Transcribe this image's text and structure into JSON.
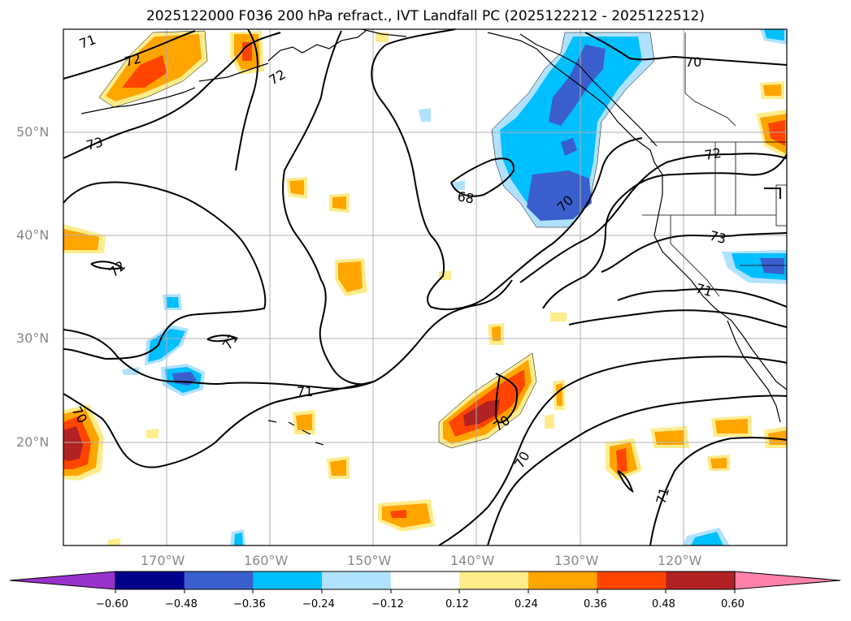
{
  "title": "2025122000 F036 200 hPa refract., IVT Landfall PC (2025122212 - 2025122512)",
  "map": {
    "longitude_labels": [
      "170°W",
      "160°W",
      "150°W",
      "140°W",
      "130°W",
      "120°W"
    ],
    "latitude_labels": [
      "50°N",
      "40°N",
      "30°N",
      "20°N"
    ],
    "contour_labels": [
      "71",
      "72",
      "72",
      "73",
      "72",
      "71",
      "70",
      "68",
      "70",
      "72",
      "73",
      "71",
      "70",
      "70",
      "70",
      "71",
      "71"
    ]
  },
  "colorbar": {
    "tick_labels": [
      "−0.60",
      "−0.48",
      "−0.36",
      "−0.24",
      "−0.12",
      "0.12",
      "0.24",
      "0.36",
      "0.48",
      "0.60"
    ],
    "colors": [
      "#9932cc",
      "#00008b",
      "#3a5fcd",
      "#00bfff",
      "#b0e2ff",
      "#ffffff",
      "#ffec8b",
      "#ffa500",
      "#ff4500",
      "#b22222",
      "#ff82ab"
    ]
  }
}
